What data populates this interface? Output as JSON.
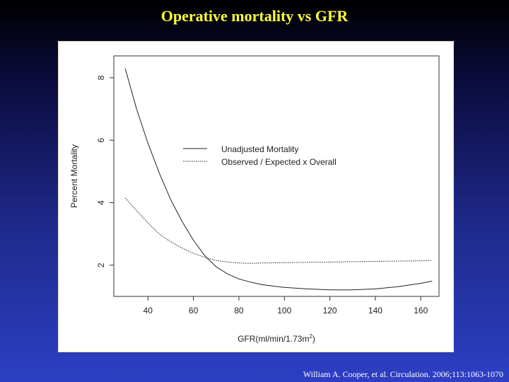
{
  "slide": {
    "title": "Operative mortality vs GFR",
    "citation": "William A. Cooper, et al. Circulation. 2006;113:1063-1070",
    "title_color": "#ffff33"
  },
  "chart_data": {
    "type": "line",
    "xlabel": "GFR(ml/min/1.73m",
    "xlabel_sup": "2",
    "xlabel_end": ")",
    "ylabel": "Percent Mortality",
    "xlim": [
      25,
      168
    ],
    "ylim": [
      1.0,
      8.7
    ],
    "xticks": [
      40,
      60,
      80,
      100,
      120,
      140,
      160
    ],
    "yticks": [
      2,
      4,
      6,
      8
    ],
    "grid": false,
    "legend_position": "upper-middle",
    "series": [
      {
        "name": "Unadjusted Mortality",
        "style": "solid",
        "x": [
          30,
          35,
          40,
          45,
          50,
          55,
          60,
          65,
          70,
          75,
          80,
          85,
          90,
          95,
          100,
          110,
          120,
          130,
          140,
          150,
          160,
          165
        ],
        "y": [
          8.3,
          7.0,
          5.9,
          4.95,
          4.1,
          3.4,
          2.8,
          2.3,
          1.95,
          1.72,
          1.56,
          1.46,
          1.38,
          1.33,
          1.29,
          1.24,
          1.21,
          1.21,
          1.24,
          1.31,
          1.42,
          1.49
        ]
      },
      {
        "name": "Observed / Expected x Overall",
        "style": "dotted",
        "x": [
          30,
          35,
          40,
          45,
          50,
          55,
          60,
          65,
          70,
          75,
          80,
          85,
          90,
          100,
          110,
          120,
          130,
          140,
          150,
          160,
          165
        ],
        "y": [
          4.15,
          3.75,
          3.35,
          3.0,
          2.75,
          2.55,
          2.38,
          2.25,
          2.15,
          2.1,
          2.07,
          2.06,
          2.07,
          2.08,
          2.09,
          2.1,
          2.11,
          2.12,
          2.13,
          2.14,
          2.15
        ]
      }
    ]
  }
}
